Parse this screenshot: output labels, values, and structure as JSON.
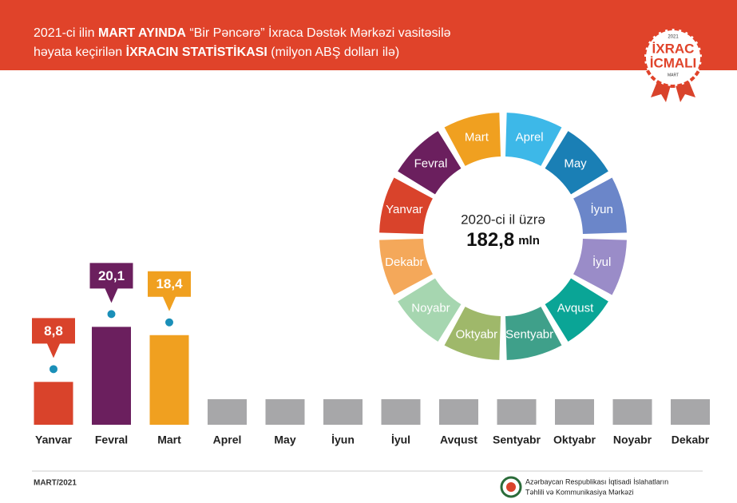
{
  "header": {
    "line1": [
      "2021-ci ilin ",
      "MART AYINDA",
      " “Bir Pəncərə” İxraca Dəstək Mərkəzi vasitəsilə"
    ],
    "line2": [
      "həyata keçirilən ",
      "İXRACIN STATİSTİKASI",
      " (milyon ABŞ dolları ilə)"
    ]
  },
  "badge": {
    "year": "2021",
    "line1": "İXRAC",
    "line2": "İCMALI",
    "month": "MART"
  },
  "chart_data": {
    "type": "bar",
    "categories": [
      "Yanvar",
      "Fevral",
      "Mart",
      "Aprel",
      "May",
      "İyun",
      "İyul",
      "Avqust",
      "Sentyabr",
      "Oktyabr",
      "Noyabr",
      "Dekabr"
    ],
    "values": [
      8.8,
      20.1,
      18.4,
      null,
      null,
      null,
      null,
      null,
      null,
      null,
      null,
      null
    ],
    "value_labels": [
      "8,8",
      "20,1",
      "18,4",
      null,
      null,
      null,
      null,
      null,
      null,
      null,
      null,
      null
    ],
    "colors": [
      "#d9432b",
      "#6b1f5e",
      "#f0a020",
      "#3db8e8",
      "#1a7fb5",
      "#6b86c9",
      "#9a8cc8",
      "#0aa596",
      "#3fa08a",
      "#9fb86a",
      "#a6d6b0",
      "#f4a85a"
    ],
    "annotations": {
      "period": "2020-ci il üzrə",
      "total": "182,8",
      "unit": "mln"
    }
  },
  "footer": {
    "date": "MART/2021",
    "org_line1": "Azərbaycan Respublikası İqtisadi İslahatların",
    "org_line2": "Təhlili və Kommunikasiya Mərkəzi"
  }
}
